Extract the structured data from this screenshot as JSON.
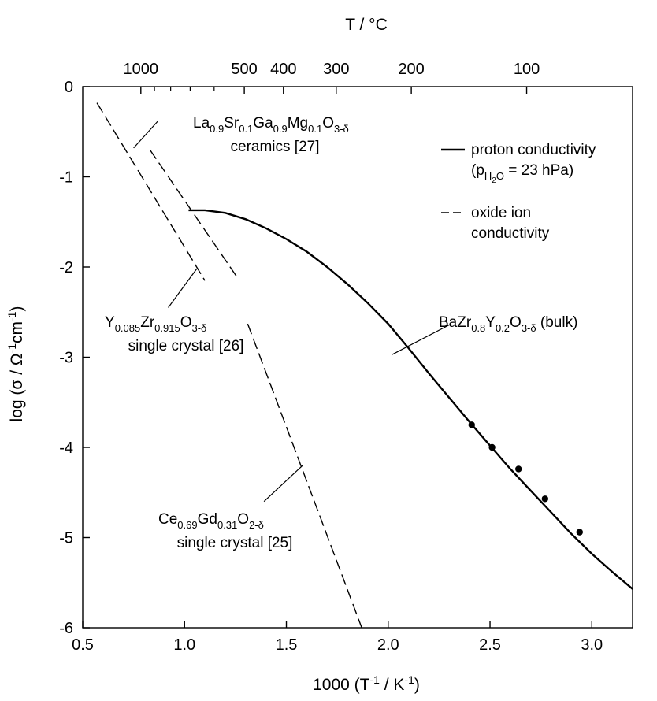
{
  "chart_data": {
    "type": "line",
    "xlabel": {
      "main": "1000 (T",
      "sup1": "-1",
      "mid": " / K",
      "sup2": "-1",
      "end": ")"
    },
    "ylabel": {
      "main": "log (σ / Ω",
      "sup1": "-1",
      "mid": "cm",
      "sup2": "-1",
      "end": ")"
    },
    "x2label": "T / °C",
    "xlim": [
      0.5,
      3.2
    ],
    "ylim": [
      -6,
      0
    ],
    "x_ticks": [
      "0.5",
      "1.0",
      "1.5",
      "2.0",
      "2.5",
      "3.0"
    ],
    "y_ticks": [
      "0",
      "-1",
      "-2",
      "-3",
      "-4",
      "-5",
      "-6"
    ],
    "x2_ticks": [
      {
        "label": "1000",
        "celsius": 1000
      },
      {
        "label": "500",
        "celsius": 500
      },
      {
        "label": "400",
        "celsius": 400
      },
      {
        "label": "300",
        "celsius": 300
      },
      {
        "label": "200",
        "celsius": 200
      },
      {
        "label": "100",
        "celsius": 100
      }
    ],
    "x2_minor_celsius": [
      900,
      800,
      700,
      600
    ],
    "legend": {
      "placement": "top-right",
      "entries": [
        {
          "style": "solid",
          "line1": "proton conductivity",
          "line2": {
            "a": "(p",
            "sub1": "H",
            "sub2": "2",
            "b": "O",
            "c": " = 23 hPa)"
          }
        },
        {
          "style": "dashed",
          "line1": "oxide ion",
          "line2": "conductivity"
        }
      ]
    },
    "series": [
      {
        "style": "solid",
        "kind": "proton",
        "points": [
          [
            1.02,
            -1.37
          ],
          [
            1.1,
            -1.37
          ],
          [
            1.2,
            -1.4
          ],
          [
            1.3,
            -1.47
          ],
          [
            1.4,
            -1.57
          ],
          [
            1.5,
            -1.69
          ],
          [
            1.6,
            -1.83
          ],
          [
            1.7,
            -2.0
          ],
          [
            1.8,
            -2.19
          ],
          [
            1.9,
            -2.4
          ],
          [
            2.0,
            -2.63
          ],
          [
            2.1,
            -2.9
          ],
          [
            2.2,
            -3.18
          ],
          [
            2.3,
            -3.45
          ],
          [
            2.4,
            -3.72
          ],
          [
            2.5,
            -3.98
          ],
          [
            2.6,
            -4.24
          ],
          [
            2.7,
            -4.48
          ],
          [
            2.8,
            -4.72
          ],
          [
            2.9,
            -4.96
          ],
          [
            3.0,
            -5.18
          ],
          [
            3.1,
            -5.38
          ],
          [
            3.2,
            -5.57
          ]
        ]
      },
      {
        "style": "dashed",
        "kind": "oxide-ion",
        "points": [
          [
            0.57,
            -0.18
          ],
          [
            1.1,
            -2.15
          ]
        ]
      },
      {
        "style": "dashed",
        "kind": "oxide-ion",
        "points": [
          [
            0.83,
            -0.7
          ],
          [
            1.26,
            -2.12
          ]
        ]
      },
      {
        "style": "dashed",
        "kind": "oxide-ion",
        "points": [
          [
            1.31,
            -2.63
          ],
          [
            1.87,
            -6.0
          ]
        ]
      },
      {
        "style": "markers",
        "kind": "data-points",
        "points": [
          [
            2.41,
            -3.75
          ],
          [
            2.51,
            -4.0
          ],
          [
            2.64,
            -4.24
          ],
          [
            2.77,
            -4.57
          ],
          [
            2.94,
            -4.94
          ]
        ]
      }
    ],
    "annotations": [
      {
        "id": "lsgm",
        "segments": [
          {
            "t": "La"
          },
          {
            "t": "0.9",
            "sub": true
          },
          {
            "t": "Sr"
          },
          {
            "t": "0.1",
            "sub": true
          },
          {
            "t": "Ga"
          },
          {
            "t": "0.9",
            "sub": true
          },
          {
            "t": "Mg"
          },
          {
            "t": "0.1",
            "sub": true
          },
          {
            "t": "O"
          },
          {
            "t": "3-δ",
            "sub": true
          }
        ],
        "line2": "ceramics [27]",
        "leader": [
          [
            0.75,
            -0.68
          ],
          [
            0.87,
            -0.38
          ]
        ]
      },
      {
        "id": "ysz",
        "segments": [
          {
            "t": "Y"
          },
          {
            "t": "0.085",
            "sub": true
          },
          {
            "t": "Zr"
          },
          {
            "t": "0.915",
            "sub": true
          },
          {
            "t": "O"
          },
          {
            "t": "3-δ",
            "sub": true
          }
        ],
        "line2": "single crystal [26]",
        "leader": [
          [
            0.92,
            -2.45
          ],
          [
            1.06,
            -2.02
          ]
        ]
      },
      {
        "id": "bzy",
        "segments": [
          {
            "t": "BaZr"
          },
          {
            "t": "0.8",
            "sub": true
          },
          {
            "t": "Y"
          },
          {
            "t": "0.2",
            "sub": true
          },
          {
            "t": "O"
          },
          {
            "t": "3-δ",
            "sub": true
          },
          {
            "t": " (bulk)"
          }
        ],
        "line2": "",
        "leader": [
          [
            2.31,
            -2.63
          ],
          [
            2.02,
            -2.97
          ]
        ]
      },
      {
        "id": "cgo",
        "segments": [
          {
            "t": "Ce"
          },
          {
            "t": "0.69",
            "sub": true
          },
          {
            "t": "Gd"
          },
          {
            "t": "0.31",
            "sub": true
          },
          {
            "t": "O"
          },
          {
            "t": "2-δ",
            "sub": true
          }
        ],
        "line2": "single crystal [25]",
        "leader": [
          [
            1.39,
            -4.6
          ],
          [
            1.58,
            -4.2
          ]
        ]
      }
    ]
  }
}
